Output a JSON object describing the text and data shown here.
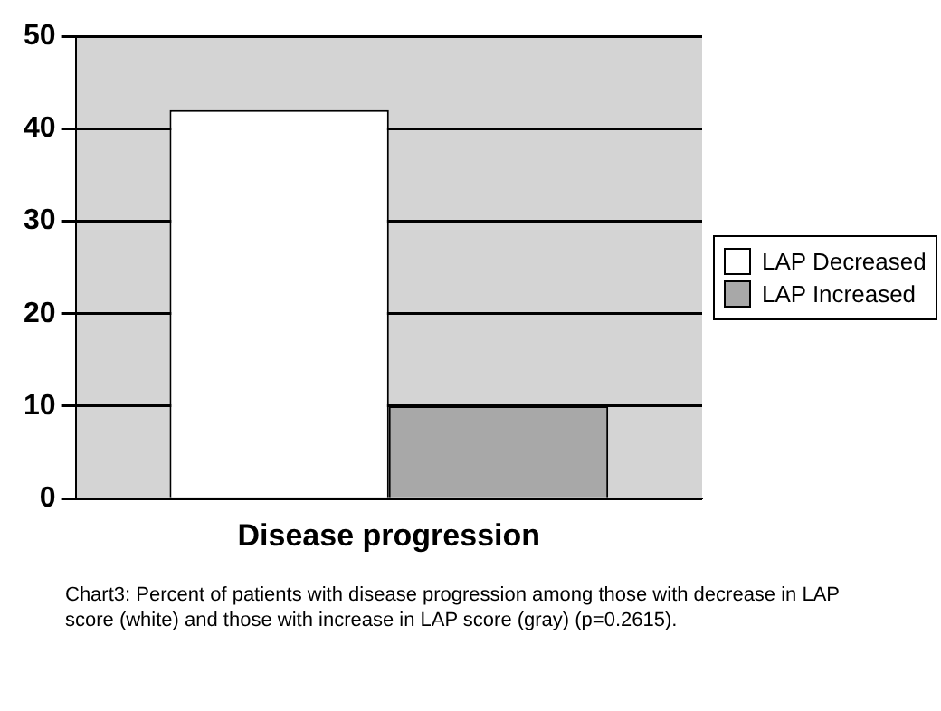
{
  "chart_data": {
    "type": "bar",
    "categories": [
      "Disease progression"
    ],
    "series": [
      {
        "name": "LAP Decreased",
        "color": "#ffffff",
        "values": [
          42
        ]
      },
      {
        "name": "LAP Increased",
        "color": "#a8a8a8",
        "values": [
          10
        ]
      }
    ],
    "ylim": [
      0,
      50
    ],
    "yticks": [
      0,
      10,
      20,
      30,
      40,
      50
    ],
    "grid": "y",
    "legend": "right",
    "annotations": [
      "Chart3: Percent of patients with disease progression among those with decrease in LAP score (white) and those with increase in LAP score (gray) (p=0.2615)."
    ]
  }
}
